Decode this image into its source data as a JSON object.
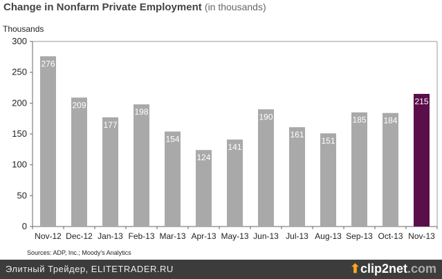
{
  "chart_data": {
    "type": "bar",
    "title": "Change in Nonfarm Private Employment",
    "subtitle": "(in thousands)",
    "ylabel": "Thousands",
    "xlabel": "",
    "ylim": [
      0,
      300
    ],
    "yticks": [
      0,
      50,
      100,
      150,
      200,
      250,
      300
    ],
    "categories": [
      "Nov-12",
      "Dec-12",
      "Jan-13",
      "Feb-13",
      "Mar-13",
      "Apr-13",
      "May-13",
      "Jun-13",
      "Jul-13",
      "Aug-13",
      "Sep-13",
      "Oct-13",
      "Nov-13"
    ],
    "values": [
      276,
      209,
      177,
      198,
      154,
      124,
      141,
      190,
      161,
      151,
      185,
      184,
      215
    ],
    "colors": {
      "default": "#a9a9a9",
      "highlight": "#5a0f4a"
    },
    "highlight_index": 12,
    "grid": false
  },
  "sources": "Sources: ADP, Inc.; Moody's Analytics",
  "footer": {
    "text": "Элитный Трейдер, ELITETRADER.RU",
    "logo_main": "clip2",
    "logo_2": "net",
    "logo_tld": ".com"
  }
}
